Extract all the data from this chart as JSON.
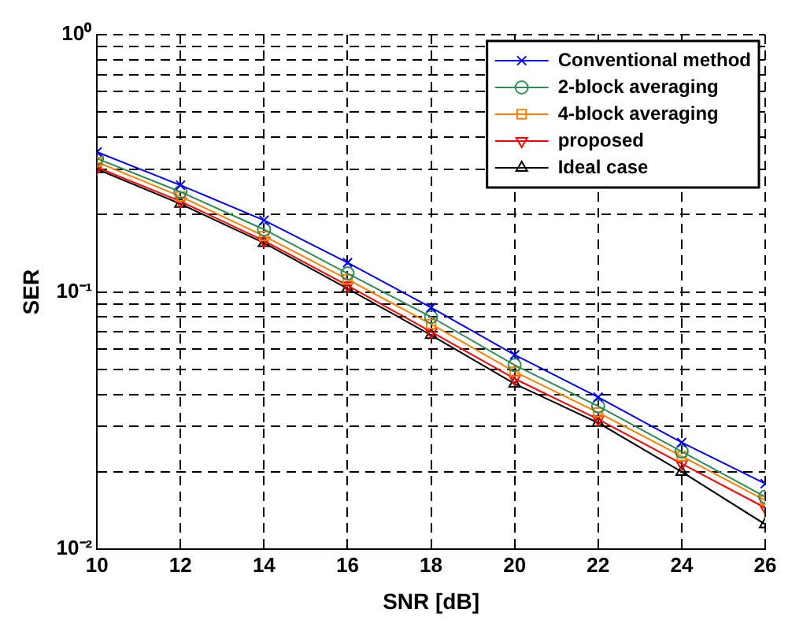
{
  "chart_data": {
    "type": "line",
    "xlabel": "SNR [dB]",
    "ylabel": "SER",
    "x": [
      10,
      12,
      14,
      16,
      18,
      20,
      22,
      24,
      26
    ],
    "xlim": [
      10,
      26
    ],
    "xticks": [
      10,
      12,
      14,
      16,
      18,
      20,
      22,
      24,
      26
    ],
    "log": "y",
    "ylim": [
      0.01,
      1
    ],
    "yticks": [
      {
        "value": 0.01,
        "label": "10⁻²"
      },
      {
        "value": 0.02,
        "label": null
      },
      {
        "value": 0.03,
        "label": null
      },
      {
        "value": 0.04,
        "label": null
      },
      {
        "value": 0.05,
        "label": null
      },
      {
        "value": 0.06,
        "label": null
      },
      {
        "value": 0.07,
        "label": null
      },
      {
        "value": 0.08,
        "label": null
      },
      {
        "value": 0.09,
        "label": null
      },
      {
        "value": 0.1,
        "label": "10⁻¹"
      },
      {
        "value": 0.2,
        "label": null
      },
      {
        "value": 0.3,
        "label": null
      },
      {
        "value": 0.4,
        "label": null
      },
      {
        "value": 0.5,
        "label": null
      },
      {
        "value": 0.6,
        "label": null
      },
      {
        "value": 0.7,
        "label": null
      },
      {
        "value": 0.8,
        "label": null
      },
      {
        "value": 0.9,
        "label": null
      },
      {
        "value": 1,
        "label": "10⁰"
      }
    ],
    "grid": true,
    "legend": "top right",
    "line_style": "solid",
    "series": [
      {
        "name": "Conventional method",
        "color": "#0000ff",
        "marker": "cross",
        "values": [
          0.35,
          0.26,
          0.19,
          0.13,
          0.087,
          0.057,
          0.039,
          0.026,
          0.018
        ]
      },
      {
        "name": "2-block averaging",
        "color": "#2e8b57",
        "marker": "circle",
        "values": [
          0.33,
          0.245,
          0.175,
          0.118,
          0.08,
          0.052,
          0.036,
          0.024,
          0.016
        ]
      },
      {
        "name": "4-block averaging",
        "color": "#ff8000",
        "marker": "square",
        "values": [
          0.32,
          0.235,
          0.165,
          0.112,
          0.075,
          0.049,
          0.034,
          0.023,
          0.0155
        ]
      },
      {
        "name": "proposed",
        "color": "#ff0000",
        "marker": "triangle-down",
        "values": [
          0.305,
          0.225,
          0.158,
          0.106,
          0.07,
          0.046,
          0.032,
          0.0215,
          0.0145
        ]
      },
      {
        "name": "Ideal case",
        "color": "#000000",
        "marker": "triangle",
        "values": [
          0.3,
          0.22,
          0.155,
          0.103,
          0.068,
          0.044,
          0.031,
          0.02,
          0.0125
        ]
      }
    ]
  }
}
